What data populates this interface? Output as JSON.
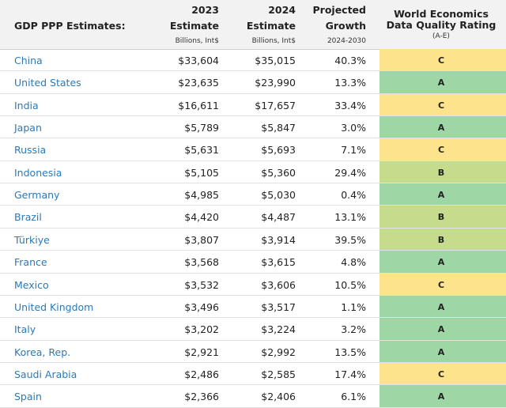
{
  "header": {
    "title": "GDP PPP Estimates:",
    "columns": [
      {
        "lines": [
          "2023",
          "Estimate",
          "Billions, Int$"
        ]
      },
      {
        "lines": [
          "2024",
          "Estimate",
          "Billions, Int$"
        ]
      },
      {
        "lines": [
          "Projected",
          "Growth",
          "2024-2030"
        ]
      },
      {
        "lines": [
          "World Economics",
          "Data Quality Rating",
          "(A-E)"
        ]
      }
    ]
  },
  "table": {
    "rows": [
      [
        "China",
        "$33,604",
        "$35,015",
        "40.3%",
        "C"
      ],
      [
        "United States",
        "$23,635",
        "$23,990",
        "13.3%",
        "A"
      ],
      [
        "India",
        "$16,611",
        "$17,657",
        "33.4%",
        "C"
      ],
      [
        "Japan",
        "$5,789",
        "$5,847",
        "3.0%",
        "A"
      ],
      [
        "Russia",
        "$5,631",
        "$5,693",
        "7.1%",
        "C"
      ],
      [
        "Indonesia",
        "$5,105",
        "$5,360",
        "29.4%",
        "B"
      ],
      [
        "Germany",
        "$4,985",
        "$5,030",
        "0.4%",
        "A"
      ],
      [
        "Brazil",
        "$4,420",
        "$4,487",
        "13.1%",
        "B"
      ],
      [
        "Türkiye",
        "$3,807",
        "$3,914",
        "39.5%",
        "B"
      ],
      [
        "France",
        "$3,568",
        "$3,615",
        "4.8%",
        "A"
      ],
      [
        "Mexico",
        "$3,532",
        "$3,606",
        "10.5%",
        "C"
      ],
      [
        "United Kingdom",
        "$3,496",
        "$3,517",
        "1.1%",
        "A"
      ],
      [
        "Italy",
        "$3,202",
        "$3,224",
        "3.2%",
        "A"
      ],
      [
        "Korea, Rep.",
        "$2,921",
        "$2,992",
        "13.5%",
        "A"
      ],
      [
        "Saudi Arabia",
        "$2,486",
        "$2,585",
        "17.4%",
        "C"
      ],
      [
        "Spain",
        "$2,366",
        "$2,406",
        "6.1%",
        "A"
      ]
    ]
  },
  "rating_colors": {
    "A": "#9fd6a5",
    "B": "#c6dc8d",
    "C": "#fde38c"
  }
}
